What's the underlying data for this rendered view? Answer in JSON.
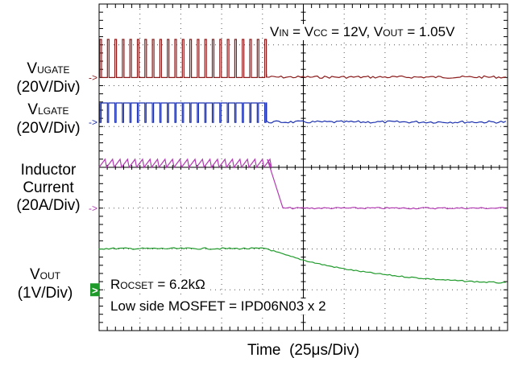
{
  "chart_data": {
    "type": "line",
    "title_parts": {
      "v1": "V",
      "v1_sub": "IN",
      "eq1": " = V",
      "v2_sub": "CC",
      "eq2": " = 12V, V",
      "v3_sub": "OUT",
      "eq3": " = 1.05V"
    },
    "x_label": {
      "text": "Time",
      "unit": "(25μs/Div)"
    },
    "x_divisions": 10,
    "y_divisions": 8,
    "grid": true,
    "channels": [
      {
        "id": "ugate",
        "name": "V",
        "name_sub": "UGATE",
        "scale": "(20V/Div)",
        "color": "#8b1a1a",
        "marker": "->",
        "baseline_div": 1.8
      },
      {
        "id": "lgate",
        "name": "V",
        "name_sub": "LGATE",
        "scale": "(20V/Div)",
        "color": "#1a2fb0",
        "marker": "->",
        "baseline_div": 2.9
      },
      {
        "id": "inductor",
        "name_lines": [
          "Inductor",
          "Current"
        ],
        "scale": "(20A/Div)",
        "color": "#b23bb2",
        "marker": "->",
        "baseline_div": 5.0
      },
      {
        "id": "vout",
        "name": "V",
        "name_sub": "OUT",
        "scale": "(1V/Div)",
        "color": "#1f9a2a",
        "marker": ">",
        "baseline_div": 7.0
      }
    ],
    "annotations": {
      "rocset": {
        "pre": "R",
        "sub": "OCSET",
        "post": " = 6.2kΩ"
      },
      "mosfet": "Low side MOSFET = IPD06N03 x 2"
    }
  }
}
